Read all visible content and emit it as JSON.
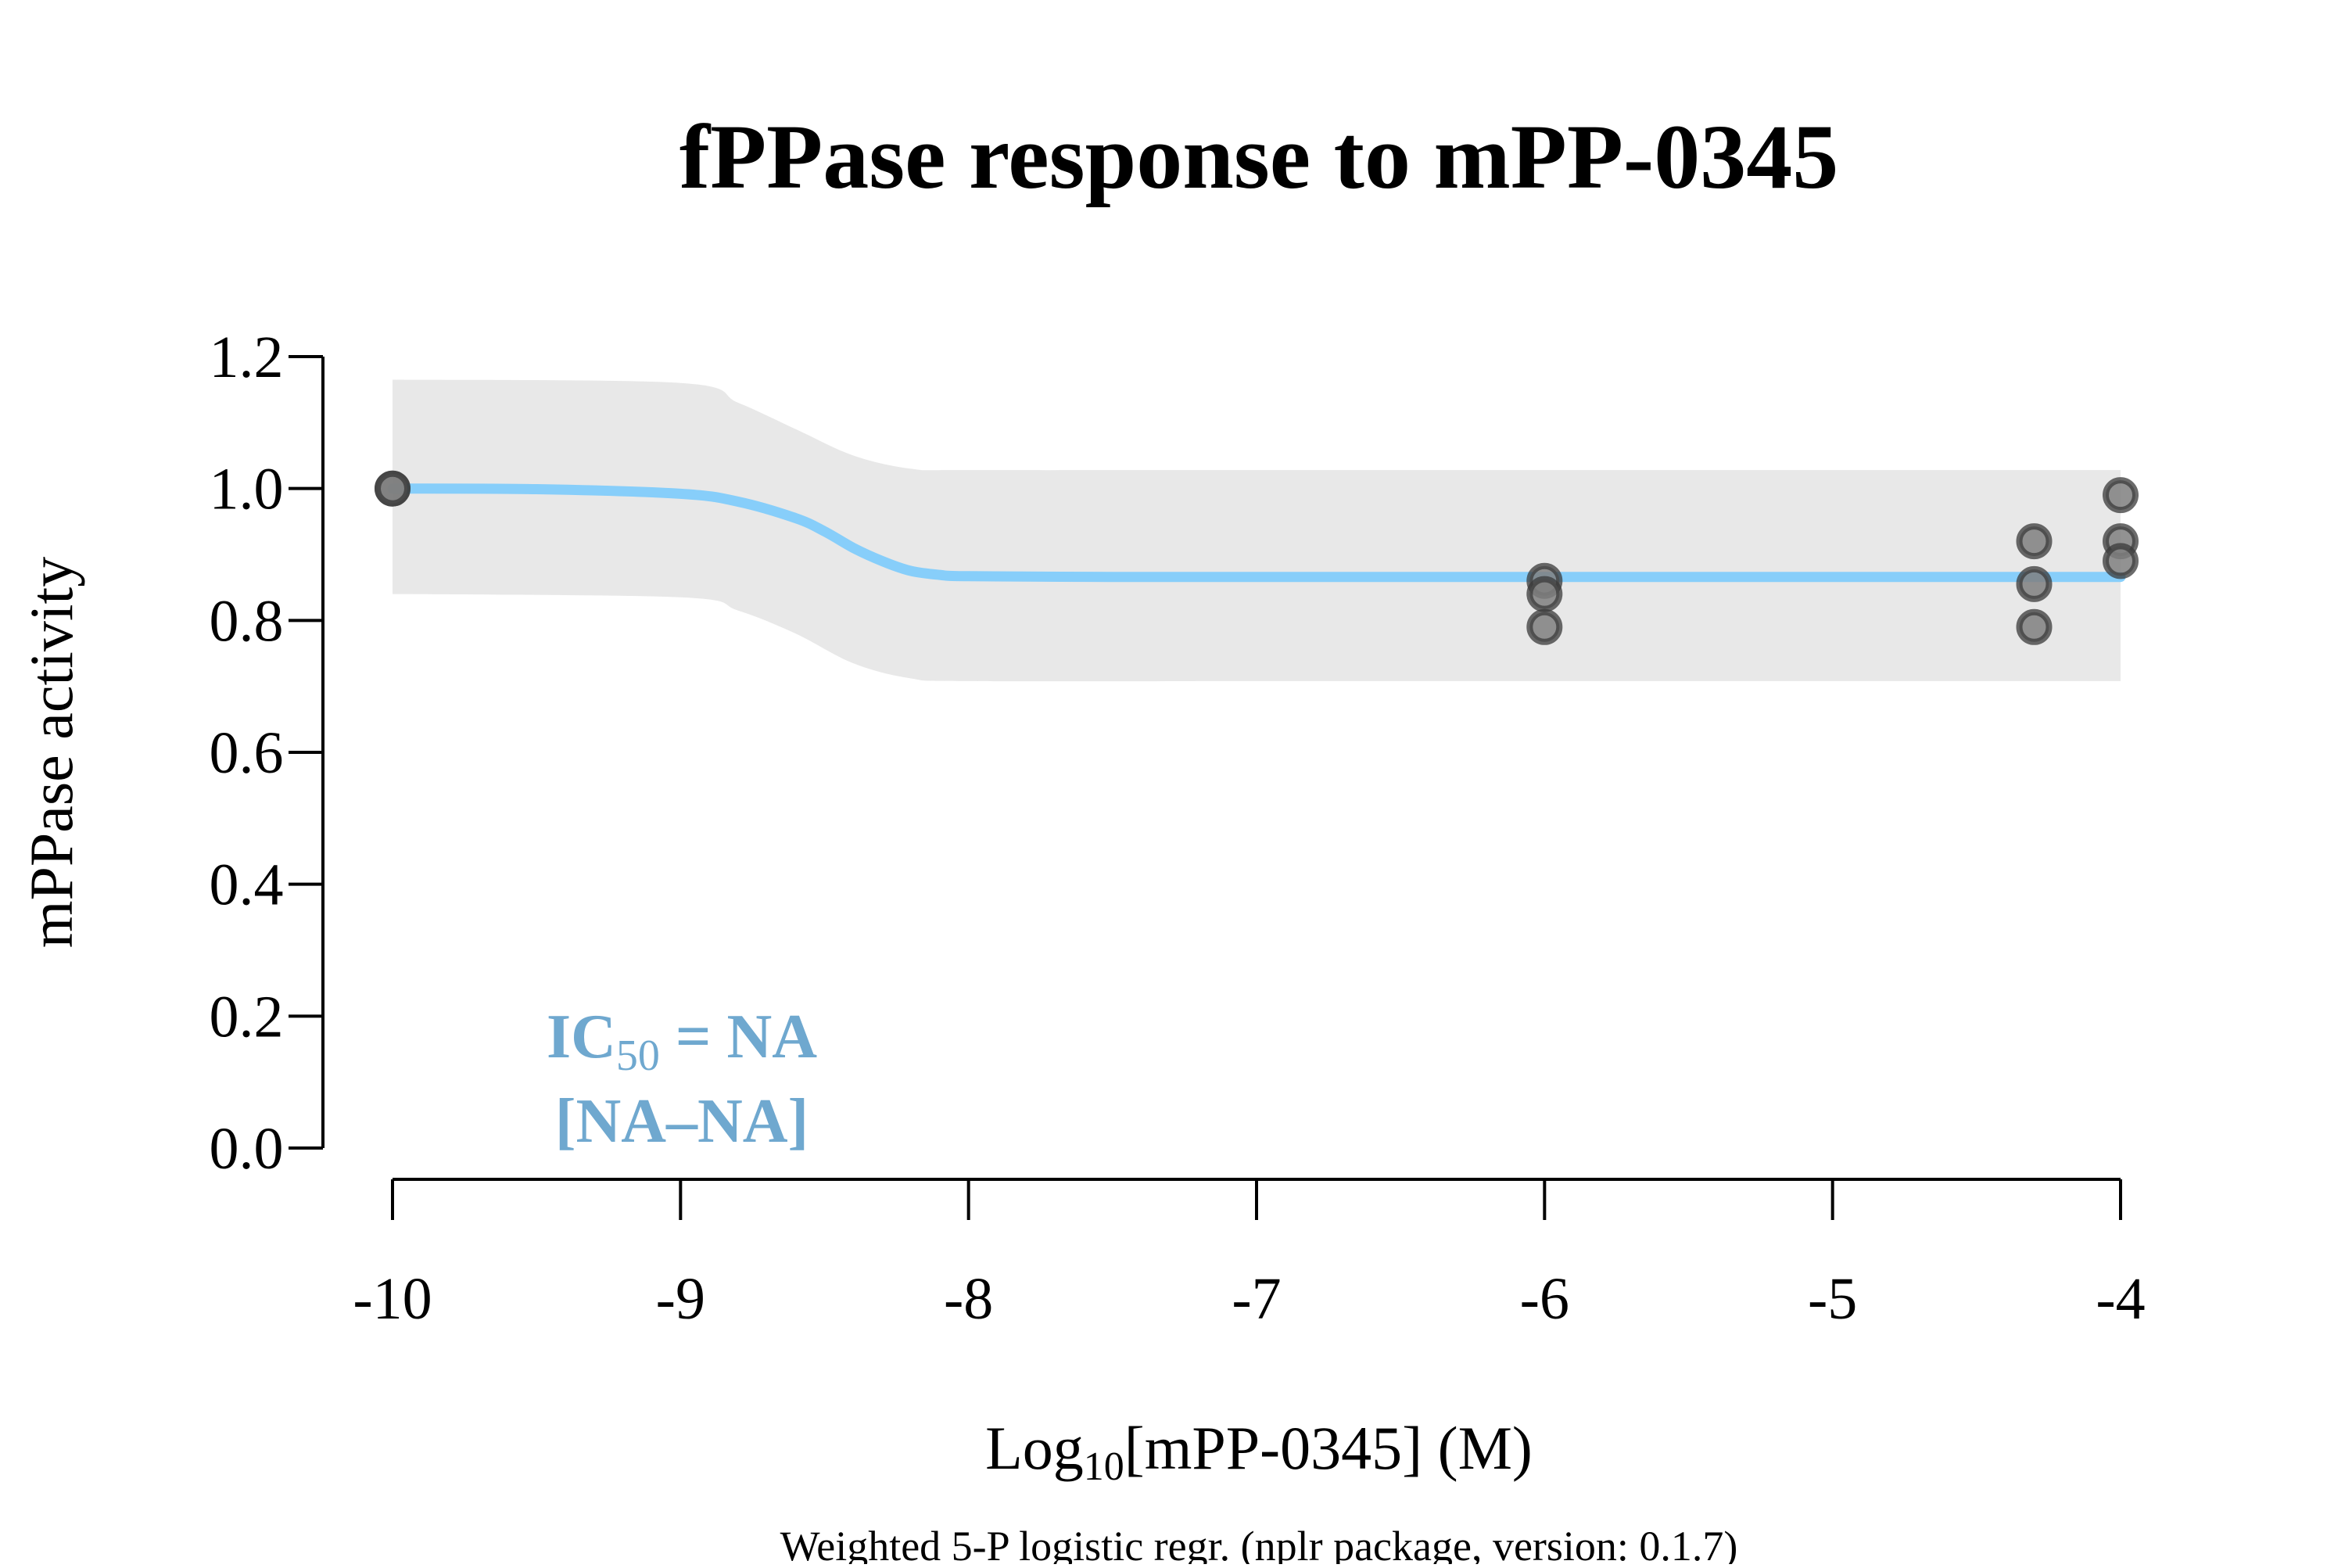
{
  "chart_data": {
    "type": "scatter",
    "title": "fPPase response to mPP-0345",
    "xlabel": {
      "prefix": "Log",
      "subscript": "10",
      "suffix": "[mPP-0345] (M)"
    },
    "ylabel": "mPPase activity",
    "footnote": "Weighted 5-P logistic regr. (nplr package, version: 0.1.7)",
    "xlim": [
      -10,
      -4
    ],
    "ylim": [
      0,
      1.2
    ],
    "x_ticks": [
      -10,
      -9,
      -8,
      -7,
      -6,
      -5,
      -4
    ],
    "x_tick_labels": [
      "-10",
      "-9",
      "-8",
      "-7",
      "-6",
      "-5",
      "-4"
    ],
    "y_ticks": [
      0,
      0.2,
      0.4,
      0.6,
      0.8,
      1.0,
      1.2
    ],
    "y_tick_labels": [
      "0.0",
      "0.2",
      "0.4",
      "0.6",
      "0.8",
      "1.0",
      "1.2"
    ],
    "grid": false,
    "points": [
      {
        "x": -10,
        "y": 1.0
      },
      {
        "x": -10,
        "y": 1.0
      },
      {
        "x": -6,
        "y": 0.86
      },
      {
        "x": -6,
        "y": 0.84
      },
      {
        "x": -6,
        "y": 0.79
      },
      {
        "x": -4.3,
        "y": 0.92
      },
      {
        "x": -4.3,
        "y": 0.855
      },
      {
        "x": -4.3,
        "y": 0.79
      },
      {
        "x": -4,
        "y": 0.99
      },
      {
        "x": -4,
        "y": 0.92
      },
      {
        "x": -4,
        "y": 0.89
      }
    ],
    "fit_curve": {
      "x": [
        -10,
        -9.5,
        -9.0,
        -8.8,
        -8.6,
        -8.5,
        -8.4,
        -8.3,
        -8.2,
        -8.1,
        -8.0,
        -7.5,
        -7,
        -6,
        -5,
        -4
      ],
      "y": [
        1.0,
        0.999,
        0.992,
        0.98,
        0.955,
        0.935,
        0.91,
        0.89,
        0.875,
        0.869,
        0.867,
        0.866,
        0.866,
        0.866,
        0.866,
        0.866
      ]
    },
    "confidence_band": {
      "x": [
        -10,
        -9.0,
        -8.8,
        -8.6,
        -8.4,
        -8.2,
        -8.0,
        -7,
        -6,
        -5,
        -4
      ],
      "upper": [
        1.165,
        1.16,
        1.13,
        1.09,
        1.05,
        1.03,
        1.028,
        1.028,
        1.028,
        1.028,
        1.028
      ],
      "lower": [
        0.84,
        0.835,
        0.815,
        0.78,
        0.735,
        0.712,
        0.708,
        0.708,
        0.708,
        0.708,
        0.708
      ]
    },
    "annotation": {
      "line1_prefix": "IC",
      "line1_sub": "50",
      "line1_suffix": " = NA",
      "line2": "[NA–NA]"
    },
    "colors": {
      "curve": "#87cefa",
      "band": "#e8e8e8",
      "points_fill": "#7f7f7f",
      "points_stroke": "#3a3a3a",
      "annotation": "#6fa8cf"
    }
  }
}
